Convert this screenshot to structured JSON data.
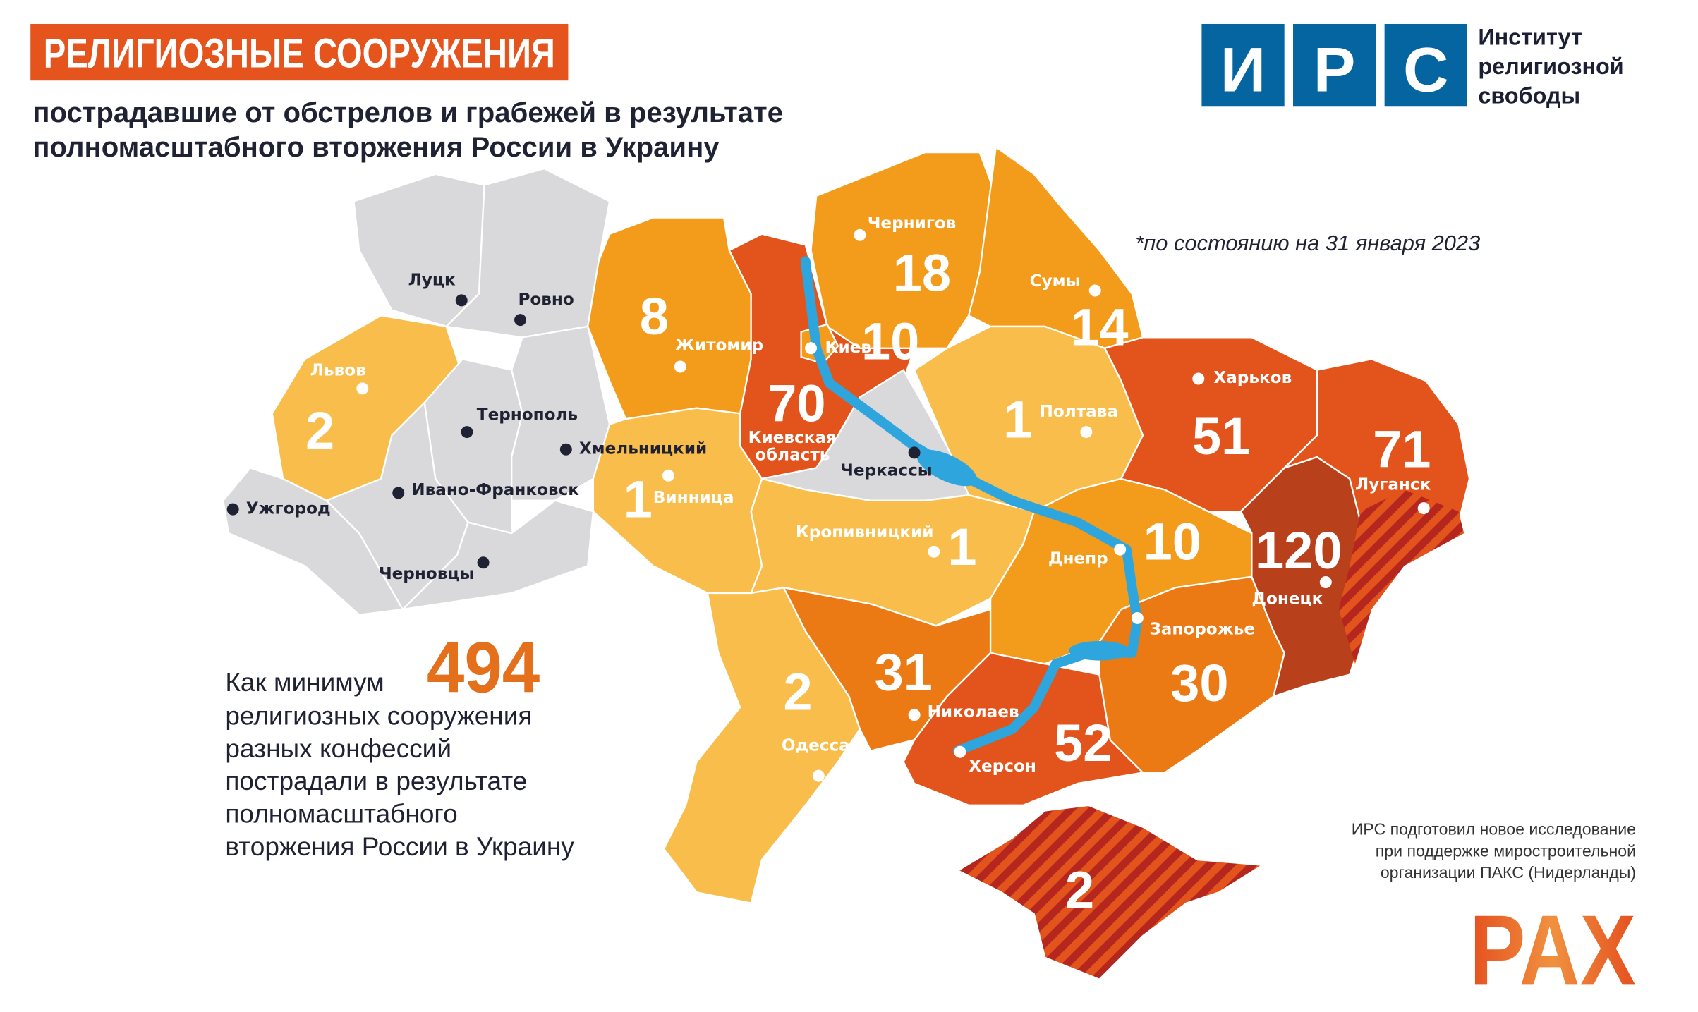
{
  "header": {
    "title": "РЕЛИГИОЗНЫЕ СООРУЖЕНИЯ",
    "subtitle_line1": "пострадавшие от обстрелов и грабежей в результате",
    "subtitle_line2": "полномасштабного вторжения России в Украину",
    "title_bg_color": "#e5541c"
  },
  "logo_irs": {
    "letters": [
      "И",
      "Р",
      "С"
    ],
    "line1": "Институт",
    "line2": "религиозной",
    "line3": "свободы",
    "color": "#0565a0"
  },
  "note": "*по состоянию на 31 января 2023",
  "summary": {
    "prefix": "Как минимум",
    "total": "494",
    "lines": [
      "религиозных сооружения",
      "разных конфессий",
      "пострадали в результате",
      "полномасштабного",
      "вторжения России в Украину"
    ]
  },
  "credits": {
    "lines": [
      "ИРС подготовил новое исследование",
      "при поддержке миростроительной",
      "организации ПАКС (Нидерланды)"
    ]
  },
  "logo_pax": {
    "text": "PAX"
  },
  "colors": {
    "none": "#d9d9db",
    "low": "#f9bd4b",
    "mid": "#f39b1b",
    "high": "#ec7a14",
    "very_high": "#e2541c",
    "max": "#b8411c",
    "river": "#2ea6dd",
    "occupied_hatch": "#b5261e"
  },
  "regions": [
    {
      "id": "volyn",
      "value": null,
      "level": "none"
    },
    {
      "id": "rivne",
      "value": null,
      "level": "none"
    },
    {
      "id": "lviv",
      "value": "2",
      "level": "low"
    },
    {
      "id": "zakarpattia",
      "value": null,
      "level": "none"
    },
    {
      "id": "ternopil",
      "value": null,
      "level": "none"
    },
    {
      "id": "khmelnytskyi",
      "value": null,
      "level": "none"
    },
    {
      "id": "ivano-frankivsk",
      "value": null,
      "level": "none"
    },
    {
      "id": "chernivtsi",
      "value": null,
      "level": "none"
    },
    {
      "id": "zhytomyr",
      "value": "8",
      "level": "mid"
    },
    {
      "id": "kyiv-oblast",
      "value": "70",
      "level": "very_high"
    },
    {
      "id": "kyiv-city",
      "value": "10",
      "level": "mid"
    },
    {
      "id": "chernihiv",
      "value": "18",
      "level": "mid"
    },
    {
      "id": "sumy",
      "value": "14",
      "level": "mid"
    },
    {
      "id": "poltava",
      "value": "1",
      "level": "low"
    },
    {
      "id": "cherkasy",
      "value": null,
      "level": "none"
    },
    {
      "id": "vinnytsia",
      "value": "1",
      "level": "low"
    },
    {
      "id": "kirovohrad",
      "value": "1",
      "level": "low"
    },
    {
      "id": "odesa",
      "value": "2",
      "level": "low"
    },
    {
      "id": "mykolaiv",
      "value": "31",
      "level": "high"
    },
    {
      "id": "kherson",
      "value": "52",
      "level": "very_high"
    },
    {
      "id": "dnipro",
      "value": "10",
      "level": "mid"
    },
    {
      "id": "zaporizhzhia",
      "value": "30",
      "level": "high"
    },
    {
      "id": "kharkiv",
      "value": "51",
      "level": "very_high"
    },
    {
      "id": "luhansk",
      "value": "71",
      "level": "very_high"
    },
    {
      "id": "donetsk",
      "value": "120",
      "level": "max"
    },
    {
      "id": "crimea",
      "value": "2",
      "level": "very_high"
    }
  ],
  "cities": [
    {
      "id": "lutsk",
      "name": "Луцк"
    },
    {
      "id": "rivne",
      "name": "Ровно"
    },
    {
      "id": "lviv",
      "name": "Львов"
    },
    {
      "id": "ternopil",
      "name": "Тернополь"
    },
    {
      "id": "khmelnytskyi",
      "name": "Хмельницкий"
    },
    {
      "id": "ivano-frankivsk",
      "name": "Ивано-Франковск"
    },
    {
      "id": "uzhhorod",
      "name": "Ужгород"
    },
    {
      "id": "chernivtsi",
      "name": "Черновцы"
    },
    {
      "id": "zhytomyr",
      "name": "Житомир"
    },
    {
      "id": "kyiv",
      "name": "Киев"
    },
    {
      "id": "chernihiv",
      "name": "Чернигов"
    },
    {
      "id": "sumy",
      "name": "Сумы"
    },
    {
      "id": "poltava",
      "name": "Полтава"
    },
    {
      "id": "kharkiv",
      "name": "Харьков"
    },
    {
      "id": "luhansk",
      "name": "Луганск"
    },
    {
      "id": "cherkasy",
      "name": "Черкассы"
    },
    {
      "id": "vinnytsia",
      "name": "Винница"
    },
    {
      "id": "kropyvnytskyi",
      "name": "Кропивницкий"
    },
    {
      "id": "dnipro",
      "name": "Днепр"
    },
    {
      "id": "donetsk",
      "name": "Донецк"
    },
    {
      "id": "zaporizhzhia",
      "name": "Запорожье"
    },
    {
      "id": "mykolaiv",
      "name": "Николаев"
    },
    {
      "id": "kherson",
      "name": "Херсон"
    },
    {
      "id": "odesa",
      "name": "Одесса"
    }
  ],
  "kyiv_oblast_label": [
    "Киевская",
    "область"
  ]
}
